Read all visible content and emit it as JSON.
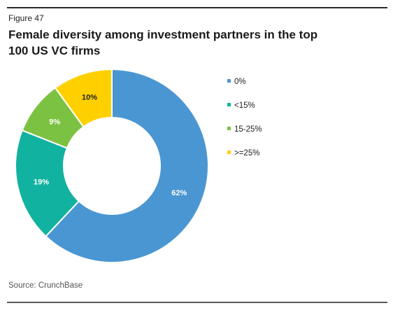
{
  "figure_label": "Figure 47",
  "source": "Source: CrunchBase",
  "chart_data": {
    "type": "pie",
    "donut": true,
    "title": "Female diversity among investment partners in the top 100 US VC firms",
    "categories": [
      "0%",
      "<15%",
      "15-25%",
      ">=25%"
    ],
    "values": [
      62,
      19,
      9,
      10
    ],
    "data_labels": [
      "62%",
      "19%",
      "9%",
      "10%"
    ],
    "colors": [
      "#4a96d2",
      "#12b2a0",
      "#7cc242",
      "#ffd000"
    ],
    "label_colors": [
      "#ffffff",
      "#ffffff",
      "#ffffff",
      "#222222"
    ],
    "legend_position": "right"
  }
}
